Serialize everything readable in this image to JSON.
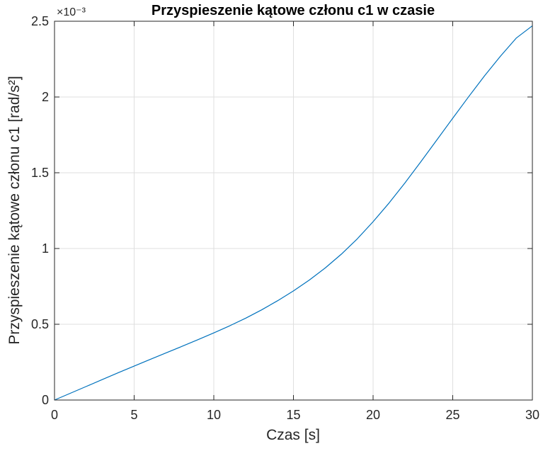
{
  "chart_data": {
    "type": "line",
    "title": "Przyspieszenie kątowe członu c1 w czasie",
    "xlabel": "Czas [s]",
    "ylabel": "Przyspieszenie kątowe członu c1 [rad/s²]",
    "y_exponent_label": "×10⁻³",
    "xlim": [
      0,
      30
    ],
    "ylim": [
      0,
      2.5
    ],
    "y_scale_factor": 0.001,
    "grid": true,
    "x_ticks": [
      0,
      5,
      10,
      15,
      20,
      25,
      30
    ],
    "x_tick_labels": [
      "0",
      "5",
      "10",
      "15",
      "20",
      "25",
      "30"
    ],
    "y_ticks": [
      0,
      0.5,
      1,
      1.5,
      2,
      2.5
    ],
    "y_tick_labels": [
      "0",
      "0.5",
      "1",
      "1.5",
      "2",
      "2.5"
    ],
    "series": [
      {
        "color": "#0072BD",
        "x": [
          0,
          1,
          2,
          3,
          4,
          5,
          6,
          7,
          8,
          9,
          10,
          11,
          12,
          13,
          14,
          15,
          16,
          17,
          18,
          19,
          20,
          21,
          22,
          23,
          24,
          25,
          26,
          27,
          28,
          29,
          30
        ],
        "y": [
          0,
          0.045,
          0.09,
          0.135,
          0.18,
          0.224,
          0.268,
          0.311,
          0.354,
          0.398,
          0.443,
          0.49,
          0.54,
          0.595,
          0.655,
          0.72,
          0.792,
          0.872,
          0.962,
          1.063,
          1.177,
          1.3,
          1.433,
          1.573,
          1.716,
          1.86,
          2.002,
          2.14,
          2.27,
          2.39,
          2.47
        ]
      }
    ]
  }
}
